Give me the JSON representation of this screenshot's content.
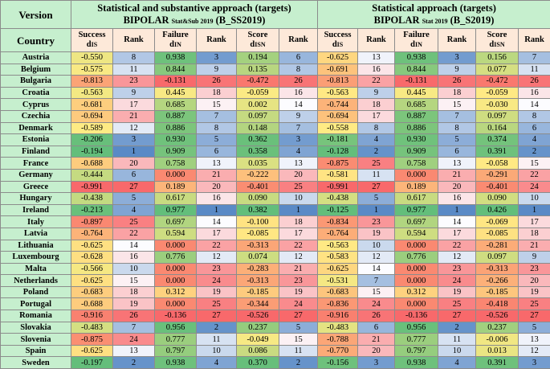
{
  "header": {
    "version_label": "Version",
    "country_label": "Country",
    "group1": {
      "line1": "Statistical and substantive approach (targets)",
      "line2_main": "BIPOLAR",
      "line2_sub": "Stat&Sub 2019",
      "line2_end": "(B_SS2019)"
    },
    "group2": {
      "line1": "Statistical approach (targets)",
      "line2_main": "BIPOLAR",
      "line2_sub": "Stat 2019",
      "line2_end": "(B_S2019)"
    },
    "columns": [
      {
        "main": "Success",
        "sub_main": "d",
        "sub": "IS"
      },
      {
        "main": "Rank",
        "sub_main": "",
        "sub": ""
      },
      {
        "main": "Failure",
        "sub_main": "d",
        "sub": "IN"
      },
      {
        "main": "Rank",
        "sub_main": "",
        "sub": ""
      },
      {
        "main": "Score",
        "sub_main": "d",
        "sub": "ISN"
      },
      {
        "main": "Rank",
        "sub_main": "",
        "sub": ""
      },
      {
        "main": "Success",
        "sub_main": "d",
        "sub": "IS"
      },
      {
        "main": "Rank",
        "sub_main": "",
        "sub": ""
      },
      {
        "main": "Failure",
        "sub_main": "d",
        "sub": "IN"
      },
      {
        "main": "Rank",
        "sub_main": "",
        "sub": ""
      },
      {
        "main": "Score",
        "sub_main": "d",
        "sub": "ISN"
      },
      {
        "main": "Rank",
        "sub_main": "",
        "sub": ""
      }
    ]
  },
  "rows": [
    {
      "country": "Austria",
      "v": [
        "-0.550",
        "8",
        "0.938",
        "3",
        "0.194",
        "6",
        "-0.625",
        "13",
        "0.938",
        "3",
        "0.156",
        "7"
      ]
    },
    {
      "country": "Belgium",
      "v": [
        "-0.575",
        "11",
        "0.844",
        "9",
        "0.135",
        "8",
        "-0.691",
        "16",
        "0.844",
        "9",
        "0.077",
        "11"
      ]
    },
    {
      "country": "Bulgaria",
      "v": [
        "-0.813",
        "23",
        "-0.131",
        "26",
        "-0.472",
        "26",
        "-0.813",
        "22",
        "-0.131",
        "26",
        "-0.472",
        "26"
      ]
    },
    {
      "country": "Croatia",
      "v": [
        "-0.563",
        "9",
        "0.445",
        "18",
        "-0.059",
        "16",
        "-0.563",
        "9",
        "0.445",
        "18",
        "-0.059",
        "16"
      ]
    },
    {
      "country": "Cyprus",
      "v": [
        "-0.681",
        "17",
        "0.685",
        "15",
        "0.002",
        "14",
        "-0.744",
        "18",
        "0.685",
        "15",
        "-0.030",
        "14"
      ]
    },
    {
      "country": "Czechia",
      "v": [
        "-0.694",
        "21",
        "0.887",
        "7",
        "0.097",
        "9",
        "-0.694",
        "17",
        "0.887",
        "7",
        "0.097",
        "8"
      ]
    },
    {
      "country": "Denmark",
      "v": [
        "-0.589",
        "12",
        "0.886",
        "8",
        "0.148",
        "7",
        "-0.558",
        "8",
        "0.886",
        "8",
        "0.164",
        "6"
      ]
    },
    {
      "country": "Estonia",
      "v": [
        "-0.206",
        "3",
        "0.930",
        "5",
        "0.362",
        "3",
        "-0.181",
        "4",
        "0.930",
        "5",
        "0.374",
        "4"
      ]
    },
    {
      "country": "Finland",
      "v": [
        "-0.194",
        "1",
        "0.909",
        "6",
        "0.358",
        "4",
        "-0.128",
        "2",
        "0.909",
        "6",
        "0.391",
        "2"
      ]
    },
    {
      "country": "France",
      "v": [
        "-0.688",
        "20",
        "0.758",
        "13",
        "0.035",
        "13",
        "-0.875",
        "25",
        "0.758",
        "13",
        "-0.058",
        "15"
      ]
    },
    {
      "country": "Germany",
      "v": [
        "-0.444",
        "6",
        "0.000",
        "21",
        "-0.222",
        "20",
        "-0.581",
        "11",
        "0.000",
        "21",
        "-0.291",
        "22"
      ]
    },
    {
      "country": "Greece",
      "v": [
        "-0.991",
        "27",
        "0.189",
        "20",
        "-0.401",
        "25",
        "-0.991",
        "27",
        "0.189",
        "20",
        "-0.401",
        "24"
      ]
    },
    {
      "country": "Hungary",
      "v": [
        "-0.438",
        "5",
        "0.617",
        "16",
        "0.090",
        "10",
        "-0.438",
        "5",
        "0.617",
        "16",
        "0.090",
        "10"
      ]
    },
    {
      "country": "Ireland",
      "v": [
        "-0.213",
        "4",
        "0.977",
        "1",
        "0.382",
        "1",
        "-0.125",
        "1",
        "0.977",
        "1",
        "0.426",
        "1"
      ]
    },
    {
      "country": "Italy",
      "v": [
        "-0.897",
        "25",
        "0.697",
        "14",
        "-0.100",
        "18",
        "-0.834",
        "23",
        "0.697",
        "14",
        "-0.069",
        "17"
      ]
    },
    {
      "country": "Latvia",
      "v": [
        "-0.764",
        "22",
        "0.594",
        "17",
        "-0.085",
        "17",
        "-0.764",
        "19",
        "0.594",
        "17",
        "-0.085",
        "18"
      ]
    },
    {
      "country": "Lithuania",
      "v": [
        "-0.625",
        "14",
        "0.000",
        "22",
        "-0.313",
        "22",
        "-0.563",
        "10",
        "0.000",
        "22",
        "-0.281",
        "21"
      ]
    },
    {
      "country": "Luxembourg",
      "v": [
        "-0.628",
        "16",
        "0.776",
        "12",
        "0.074",
        "12",
        "-0.583",
        "12",
        "0.776",
        "12",
        "0.097",
        "9"
      ]
    },
    {
      "country": "Malta",
      "v": [
        "-0.566",
        "10",
        "0.000",
        "23",
        "-0.283",
        "21",
        "-0.625",
        "14",
        "0.000",
        "23",
        "-0.313",
        "23"
      ]
    },
    {
      "country": "Netherlands",
      "v": [
        "-0.625",
        "15",
        "0.000",
        "24",
        "-0.313",
        "23",
        "-0.531",
        "7",
        "0.000",
        "24",
        "-0.266",
        "20"
      ]
    },
    {
      "country": "Poland",
      "v": [
        "-0.683",
        "18",
        "0.312",
        "19",
        "-0.185",
        "19",
        "-0.683",
        "15",
        "0.312",
        "19",
        "-0.185",
        "19"
      ]
    },
    {
      "country": "Portugal",
      "v": [
        "-0.688",
        "19",
        "0.000",
        "25",
        "-0.344",
        "24",
        "-0.836",
        "24",
        "0.000",
        "25",
        "-0.418",
        "25"
      ]
    },
    {
      "country": "Romania",
      "v": [
        "-0.916",
        "26",
        "-0.136",
        "27",
        "-0.526",
        "27",
        "-0.916",
        "26",
        "-0.136",
        "27",
        "-0.526",
        "27"
      ]
    },
    {
      "country": "Slovakia",
      "v": [
        "-0.483",
        "7",
        "0.956",
        "2",
        "0.237",
        "5",
        "-0.483",
        "6",
        "0.956",
        "2",
        "0.237",
        "5"
      ]
    },
    {
      "country": "Slovenia",
      "v": [
        "-0.875",
        "24",
        "0.777",
        "11",
        "-0.049",
        "15",
        "-0.788",
        "21",
        "0.777",
        "11",
        "-0.006",
        "13"
      ]
    },
    {
      "country": "Spain",
      "v": [
        "-0.625",
        "13",
        "0.797",
        "10",
        "0.086",
        "11",
        "-0.770",
        "20",
        "0.797",
        "10",
        "0.013",
        "12"
      ]
    },
    {
      "country": "Sweden",
      "v": [
        "-0.197",
        "2",
        "0.938",
        "4",
        "0.370",
        "2",
        "-0.156",
        "3",
        "0.938",
        "4",
        "0.391",
        "3"
      ]
    }
  ],
  "colors": {
    "header_green": "#c6efce",
    "scale_low_red": "#f8696b",
    "scale_mid_yellow": "#ffeb84",
    "scale_high_green": "#63be7b",
    "rank_best_blue": "#5a8ac6",
    "rank_mid_white": "#fcfcff",
    "rank_worst_red": "#f8696b"
  }
}
